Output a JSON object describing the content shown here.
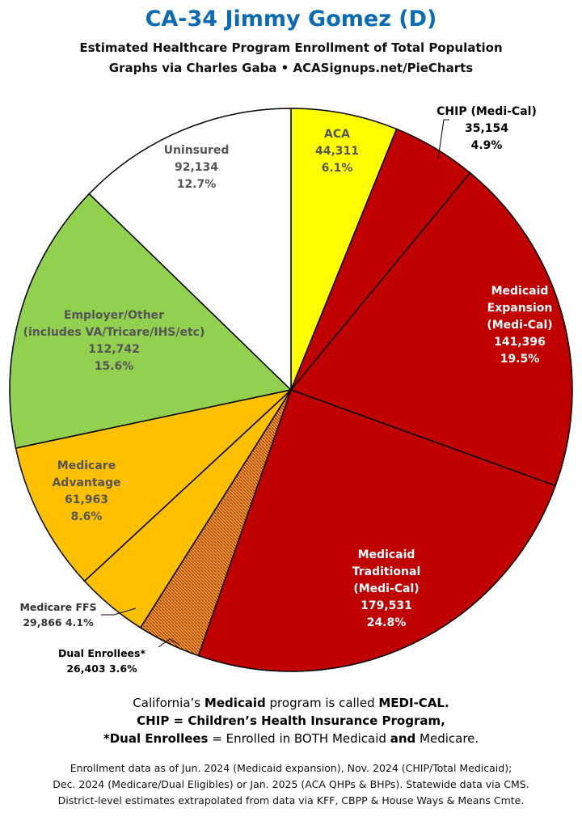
{
  "header": {
    "title": "CA-34 Jimmy Gomez (D)",
    "subtitle1": "Estimated Healthcare Program Enrollment of Total Population",
    "subtitle2": "Graphs via Charles Gaba  •  ACASignups.net/PieCharts"
  },
  "chart_data": {
    "type": "pie",
    "start_angle_deg": 0,
    "direction": "clockwise",
    "slices": [
      {
        "label": "ACA",
        "value": 44311,
        "percent": "6.1%",
        "color": "#FFFF00",
        "text_color": "#555555",
        "label_lines": [
          "ACA"
        ]
      },
      {
        "label": "CHIP (Medi-Cal)",
        "value": 35154,
        "percent": "4.9%",
        "color": "#C00000",
        "text_color": "#000000",
        "label_lines": [
          "CHIP (Medi-Cal)"
        ],
        "external": true
      },
      {
        "label": "Medicaid Expansion (Medi-Cal)",
        "value": 141396,
        "percent": "19.5%",
        "color": "#C00000",
        "text_color": "#FFFFFF",
        "label_lines": [
          "Medicaid",
          "Expansion",
          "(Medi-Cal)"
        ]
      },
      {
        "label": "Medicaid Traditional (Medi-Cal)",
        "value": 179531,
        "percent": "24.8%",
        "color": "#C00000",
        "text_color": "#FFFFFF",
        "label_lines": [
          "Medicaid",
          "Traditional",
          "(Medi-Cal)"
        ]
      },
      {
        "label": "Dual Enrollees*",
        "value": 26403,
        "percent": "3.6%",
        "color": "#E07A10",
        "pattern": "hatch",
        "text_color": "#000000",
        "label_lines": [
          "Dual Enrollees*"
        ],
        "external": true
      },
      {
        "label": "Medicare FFS",
        "value": 29866,
        "percent": "4.1%",
        "color": "#FFC000",
        "text_color": "#333333",
        "label_lines": [
          "Medicare FFS"
        ],
        "external": true
      },
      {
        "label": "Medicare Advantage",
        "value": 61963,
        "percent": "8.6%",
        "color": "#FFC000",
        "text_color": "#555555",
        "label_lines": [
          "Medicare",
          "Advantage"
        ]
      },
      {
        "label": "Employer/Other (includes VA/Tricare/IHS/etc)",
        "value": 112742,
        "percent": "15.6%",
        "color": "#92D050",
        "text_color": "#555555",
        "label_lines": [
          "Employer/Other",
          "(includes VA/Tricare/IHS/etc)"
        ]
      },
      {
        "label": "Uninsured",
        "value": 92134,
        "percent": "12.7%",
        "color": "#FFFFFF",
        "text_color": "#555555",
        "label_lines": [
          "Uninsured"
        ]
      }
    ]
  },
  "notes": {
    "line1_pre": "California’s ",
    "line1_b1": "Medicaid",
    "line1_mid": " program is called ",
    "line1_b2": "MEDI-CAL.",
    "line2": "CHIP = Children’s Health Insurance Program,",
    "line3_b1": "*Dual Enrollees",
    "line3_mid": " = Enrolled in BOTH Medicaid ",
    "line3_b2": "and",
    "line3_post": " Medicare."
  },
  "footer": {
    "line1": "Enrollment data as of Jun. 2024 (Medicaid expansion), Nov. 2024 (CHIP/Total Medicaid);",
    "line2": "Dec. 2024 (Medicare/Dual Eligibles) or Jan. 2025 (ACA QHPs & BHPs). Statewide data via CMS.",
    "line3": "District-level estimates extrapolated from data via KFF, CBPP & House Ways & Means Cmte."
  }
}
